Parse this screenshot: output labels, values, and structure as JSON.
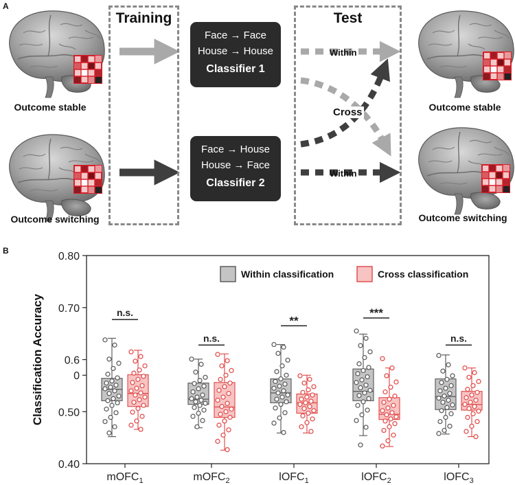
{
  "panel_a": {
    "letter": "A",
    "brains": {
      "left_top": "Outcome stable",
      "left_bottom": "Outcome switching",
      "right_top": "Outcome stable",
      "right_bottom": "Outcome switching"
    },
    "training_title": "Training",
    "test_title": "Test",
    "classifier1": {
      "line1": "Face → Face",
      "line2": "House → House",
      "name": "Classifier 1"
    },
    "classifier2": {
      "line1": "Face → House",
      "line2": "House → Face",
      "name": "Classifier 2"
    },
    "within_top": "Within",
    "cross": "Cross",
    "within_bottom": "Within",
    "colors": {
      "light_arrow": "#a9a9a9",
      "dark_arrow": "#3f3f3f",
      "grid_red": "#d81e2a"
    }
  },
  "panel_b": {
    "letter": "B"
  },
  "chart_data": {
    "type": "box",
    "ylabel": "Classification Accuracy",
    "ylim": [
      0.4,
      0.8
    ],
    "yticks": [
      {
        "value": 0.8,
        "label": "0.80"
      },
      {
        "value": 0.7,
        "label": "0.70"
      },
      {
        "value": 0.6,
        "label": "0.6"
      },
      {
        "value": 0.57,
        "label": "0"
      },
      {
        "value": 0.5,
        "label": "0.50"
      },
      {
        "value": 0.4,
        "label": "0.40"
      }
    ],
    "categories": [
      {
        "base": "mOFC",
        "sub": "1"
      },
      {
        "base": "mOFC",
        "sub": "2"
      },
      {
        "base": "lOFC",
        "sub": "1"
      },
      {
        "base": "lOFC",
        "sub": "2"
      },
      {
        "base": "lOFC",
        "sub": "3"
      }
    ],
    "legend": {
      "within": "Within classification",
      "cross": "Cross classification",
      "placement": "top-right"
    },
    "colors": {
      "within_fill": "#c4c4c4",
      "within_edge": "#5f5f5f",
      "cross_fill": "#f7c3c3",
      "cross_edge": "#e2504f"
    },
    "significance": [
      "n.s.",
      "n.s.",
      "**",
      "***",
      "n.s."
    ],
    "series": [
      {
        "name": "Within classification",
        "boxes": [
          {
            "whislo": 0.452,
            "q1": 0.521,
            "med": 0.543,
            "q3": 0.564,
            "whishi": 0.641
          },
          {
            "whislo": 0.469,
            "q1": 0.514,
            "med": 0.524,
            "q3": 0.555,
            "whishi": 0.601
          },
          {
            "whislo": 0.459,
            "q1": 0.517,
            "med": 0.536,
            "q3": 0.563,
            "whishi": 0.629
          },
          {
            "whislo": 0.454,
            "q1": 0.521,
            "med": 0.539,
            "q3": 0.582,
            "whishi": 0.649
          },
          {
            "whislo": 0.457,
            "q1": 0.504,
            "med": 0.529,
            "q3": 0.563,
            "whishi": 0.609
          }
        ],
        "points": [
          [
            0.638,
            0.628,
            0.601,
            0.593,
            0.583,
            0.572,
            0.565,
            0.559,
            0.555,
            0.551,
            0.547,
            0.544,
            0.54,
            0.535,
            0.53,
            0.525,
            0.521,
            0.517,
            0.512,
            0.505,
            0.498,
            0.489,
            0.481,
            0.471,
            0.459
          ],
          [
            0.601,
            0.591,
            0.576,
            0.566,
            0.56,
            0.554,
            0.549,
            0.544,
            0.538,
            0.532,
            0.528,
            0.525,
            0.522,
            0.519,
            0.516,
            0.512,
            0.508,
            0.503,
            0.497,
            0.491,
            0.483,
            0.471
          ],
          [
            0.629,
            0.624,
            0.612,
            0.599,
            0.588,
            0.577,
            0.57,
            0.563,
            0.558,
            0.553,
            0.549,
            0.545,
            0.54,
            0.536,
            0.532,
            0.528,
            0.524,
            0.519,
            0.514,
            0.507,
            0.498,
            0.488,
            0.478,
            0.46
          ],
          [
            0.655,
            0.641,
            0.627,
            0.615,
            0.604,
            0.592,
            0.585,
            0.579,
            0.573,
            0.567,
            0.561,
            0.556,
            0.551,
            0.546,
            0.541,
            0.536,
            0.531,
            0.525,
            0.519,
            0.512,
            0.503,
            0.494,
            0.483,
            0.47,
            0.436
          ],
          [
            0.608,
            0.59,
            0.578,
            0.569,
            0.562,
            0.556,
            0.55,
            0.545,
            0.54,
            0.535,
            0.53,
            0.526,
            0.522,
            0.518,
            0.513,
            0.508,
            0.502,
            0.496,
            0.489,
            0.481,
            0.472,
            0.464,
            0.458
          ]
        ]
      },
      {
        "name": "Cross classification",
        "boxes": [
          {
            "whislo": 0.466,
            "q1": 0.51,
            "med": 0.535,
            "q3": 0.571,
            "whishi": 0.618
          },
          {
            "whislo": 0.426,
            "q1": 0.489,
            "med": 0.509,
            "q3": 0.556,
            "whishi": 0.611
          },
          {
            "whislo": 0.459,
            "q1": 0.497,
            "med": 0.517,
            "q3": 0.534,
            "whishi": 0.57
          },
          {
            "whislo": 0.433,
            "q1": 0.485,
            "med": 0.495,
            "q3": 0.527,
            "whishi": 0.584
          },
          {
            "whislo": 0.452,
            "q1": 0.503,
            "med": 0.514,
            "q3": 0.539,
            "whishi": 0.584
          }
        ],
        "points": [
          [
            0.615,
            0.606,
            0.597,
            0.588,
            0.58,
            0.574,
            0.568,
            0.562,
            0.556,
            0.55,
            0.545,
            0.54,
            0.536,
            0.532,
            0.528,
            0.523,
            0.518,
            0.512,
            0.506,
            0.499,
            0.491,
            0.482,
            0.474,
            0.466
          ],
          [
            0.61,
            0.598,
            0.588,
            0.579,
            0.57,
            0.562,
            0.555,
            0.548,
            0.541,
            0.535,
            0.528,
            0.522,
            0.516,
            0.51,
            0.505,
            0.5,
            0.495,
            0.489,
            0.482,
            0.474,
            0.465,
            0.455,
            0.443,
            0.427
          ],
          [
            0.569,
            0.562,
            0.555,
            0.548,
            0.542,
            0.537,
            0.532,
            0.528,
            0.524,
            0.52,
            0.517,
            0.514,
            0.51,
            0.506,
            0.502,
            0.497,
            0.492,
            0.486,
            0.479,
            0.471,
            0.462
          ],
          [
            0.602,
            0.584,
            0.569,
            0.557,
            0.547,
            0.538,
            0.53,
            0.524,
            0.518,
            0.512,
            0.507,
            0.502,
            0.498,
            0.494,
            0.49,
            0.486,
            0.482,
            0.477,
            0.471,
            0.464,
            0.455,
            0.444,
            0.434
          ],
          [
            0.584,
            0.575,
            0.566,
            0.558,
            0.55,
            0.543,
            0.537,
            0.532,
            0.527,
            0.522,
            0.518,
            0.514,
            0.51,
            0.506,
            0.501,
            0.496,
            0.489,
            0.481,
            0.472,
            0.462,
            0.452
          ]
        ]
      }
    ]
  }
}
